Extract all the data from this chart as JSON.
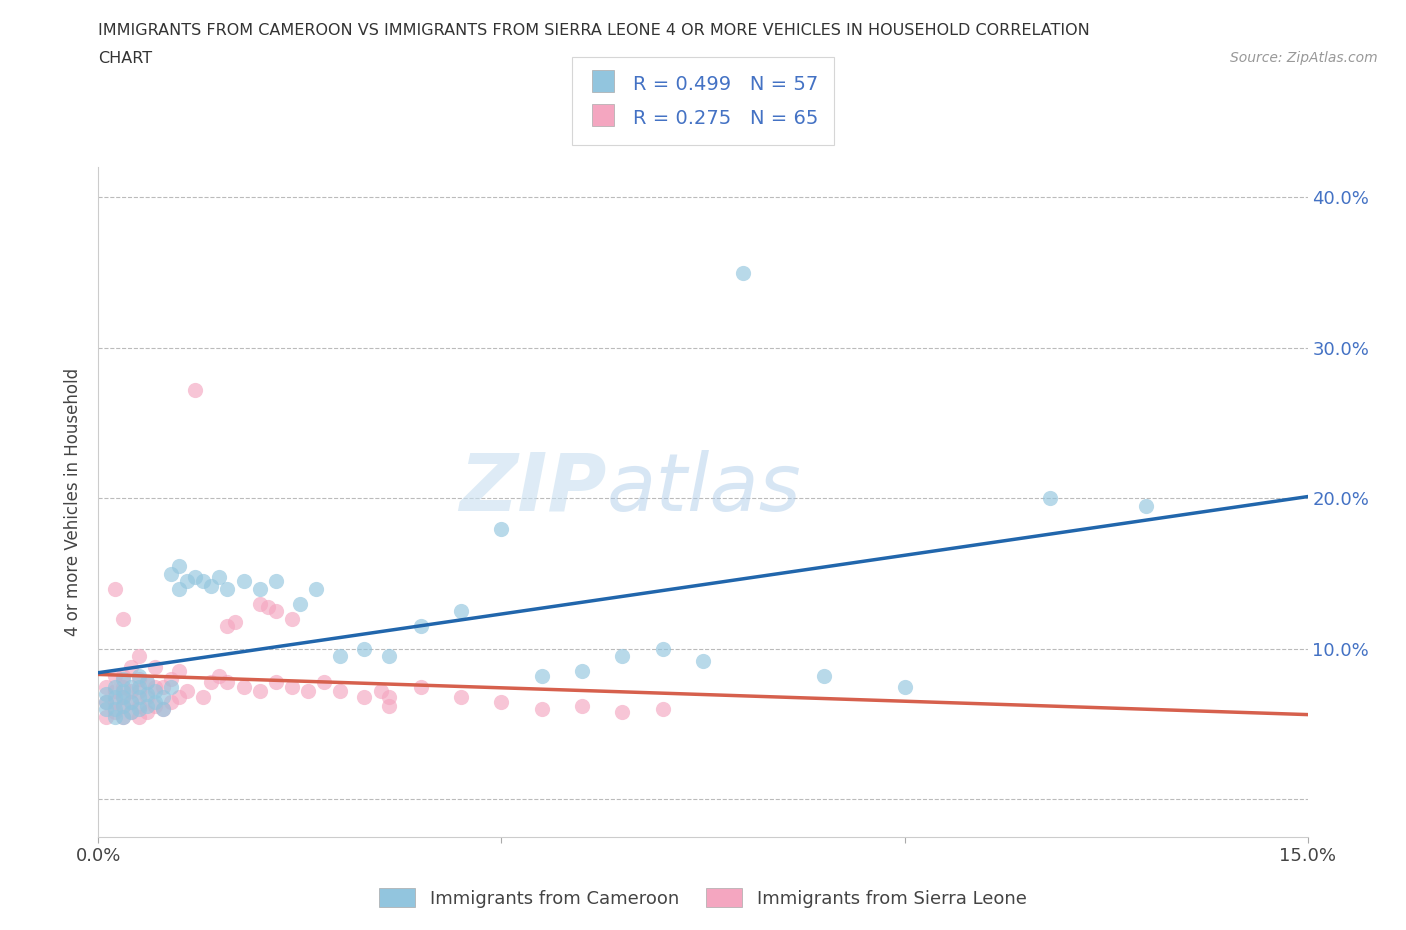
{
  "title_line1": "IMMIGRANTS FROM CAMEROON VS IMMIGRANTS FROM SIERRA LEONE 4 OR MORE VEHICLES IN HOUSEHOLD CORRELATION",
  "title_line2": "CHART",
  "source": "Source: ZipAtlas.com",
  "ylabel": "4 or more Vehicles in Household",
  "legend1_label": "Immigrants from Cameroon",
  "legend2_label": "Immigrants from Sierra Leone",
  "r1": 0.499,
  "n1": 57,
  "r2": 0.275,
  "n2": 65,
  "color1": "#92c5de",
  "color2": "#f4a6c0",
  "line_color1": "#2166ac",
  "line_color2": "#d6604d",
  "watermark_zip": "ZIP",
  "watermark_atlas": "atlas",
  "xlim": [
    0.0,
    0.15
  ],
  "ylim": [
    -0.025,
    0.42
  ],
  "yticks": [
    0.0,
    0.1,
    0.2,
    0.3,
    0.4
  ],
  "ytick_labels": [
    "",
    "10.0%",
    "20.0%",
    "30.0%",
    "40.0%"
  ],
  "grid_color": "#bbbbbb",
  "cameroon_x": [
    0.001,
    0.001,
    0.001,
    0.002,
    0.002,
    0.002,
    0.002,
    0.003,
    0.003,
    0.003,
    0.003,
    0.003,
    0.004,
    0.004,
    0.004,
    0.005,
    0.005,
    0.005,
    0.005,
    0.006,
    0.006,
    0.006,
    0.007,
    0.007,
    0.008,
    0.008,
    0.009,
    0.009,
    0.01,
    0.01,
    0.011,
    0.012,
    0.013,
    0.014,
    0.015,
    0.016,
    0.018,
    0.02,
    0.022,
    0.025,
    0.027,
    0.03,
    0.033,
    0.036,
    0.04,
    0.045,
    0.05,
    0.055,
    0.06,
    0.065,
    0.07,
    0.075,
    0.08,
    0.09,
    0.1,
    0.118,
    0.13
  ],
  "cameroon_y": [
    0.06,
    0.065,
    0.07,
    0.055,
    0.06,
    0.068,
    0.075,
    0.055,
    0.062,
    0.068,
    0.072,
    0.08,
    0.058,
    0.065,
    0.075,
    0.06,
    0.068,
    0.075,
    0.082,
    0.062,
    0.07,
    0.078,
    0.065,
    0.072,
    0.06,
    0.068,
    0.075,
    0.15,
    0.14,
    0.155,
    0.145,
    0.148,
    0.145,
    0.142,
    0.148,
    0.14,
    0.145,
    0.14,
    0.145,
    0.13,
    0.14,
    0.095,
    0.1,
    0.095,
    0.115,
    0.125,
    0.18,
    0.082,
    0.085,
    0.095,
    0.1,
    0.092,
    0.35,
    0.082,
    0.075,
    0.2,
    0.195
  ],
  "sierraleone_x": [
    0.001,
    0.001,
    0.001,
    0.002,
    0.002,
    0.002,
    0.002,
    0.002,
    0.003,
    0.003,
    0.003,
    0.003,
    0.003,
    0.003,
    0.004,
    0.004,
    0.004,
    0.004,
    0.005,
    0.005,
    0.005,
    0.005,
    0.005,
    0.006,
    0.006,
    0.006,
    0.007,
    0.007,
    0.007,
    0.008,
    0.008,
    0.009,
    0.009,
    0.01,
    0.01,
    0.011,
    0.012,
    0.013,
    0.014,
    0.015,
    0.016,
    0.018,
    0.02,
    0.022,
    0.024,
    0.026,
    0.028,
    0.03,
    0.033,
    0.036,
    0.04,
    0.045,
    0.05,
    0.055,
    0.06,
    0.065,
    0.07,
    0.02,
    0.021,
    0.022,
    0.024,
    0.016,
    0.017,
    0.035,
    0.036
  ],
  "sierraleone_y": [
    0.055,
    0.065,
    0.075,
    0.058,
    0.065,
    0.072,
    0.082,
    0.14,
    0.055,
    0.062,
    0.068,
    0.075,
    0.082,
    0.12,
    0.058,
    0.065,
    0.072,
    0.088,
    0.055,
    0.062,
    0.072,
    0.08,
    0.095,
    0.058,
    0.068,
    0.078,
    0.062,
    0.075,
    0.088,
    0.06,
    0.075,
    0.065,
    0.08,
    0.068,
    0.085,
    0.072,
    0.272,
    0.068,
    0.078,
    0.082,
    0.078,
    0.075,
    0.072,
    0.078,
    0.075,
    0.072,
    0.078,
    0.072,
    0.068,
    0.062,
    0.075,
    0.068,
    0.065,
    0.06,
    0.062,
    0.058,
    0.06,
    0.13,
    0.128,
    0.125,
    0.12,
    0.115,
    0.118,
    0.072,
    0.068
  ]
}
